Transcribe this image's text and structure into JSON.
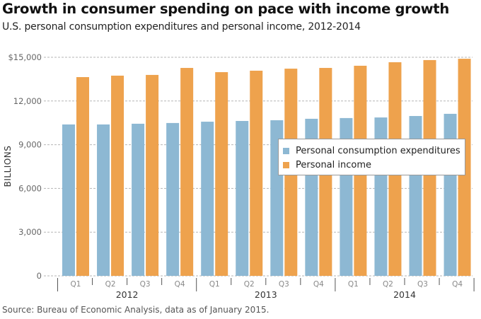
{
  "chart_data": {
    "type": "bar",
    "title": "Growth in consumer spending on pace with income growth",
    "subtitle": "U.S. personal consumption expenditures and personal income, 2012-2014",
    "xlabel": "",
    "ylabel": "BILLIONS",
    "ylim": [
      0,
      15000
    ],
    "yticks": [
      {
        "value": 0,
        "label": "0"
      },
      {
        "value": 3000,
        "label": "3,000"
      },
      {
        "value": 6000,
        "label": "6,000"
      },
      {
        "value": 9000,
        "label": "9,000"
      },
      {
        "value": 12000,
        "label": "12,000"
      },
      {
        "value": 15000,
        "label": "$15,000"
      }
    ],
    "grid": true,
    "categories": [
      "Q1",
      "Q2",
      "Q3",
      "Q4",
      "Q1",
      "Q2",
      "Q3",
      "Q4",
      "Q1",
      "Q2",
      "Q3",
      "Q4"
    ],
    "category_groups": [
      {
        "label": "2012",
        "count": 4
      },
      {
        "label": "2013",
        "count": 4
      },
      {
        "label": "2014",
        "count": 4
      }
    ],
    "series": [
      {
        "name": "Personal consumption expenditures",
        "color": "#8db8d3",
        "values": [
          10390,
          10390,
          10440,
          10490,
          10580,
          10630,
          10680,
          10780,
          10830,
          10870,
          10970,
          11120
        ]
      },
      {
        "name": "Personal income",
        "color": "#eea24d",
        "values": [
          13640,
          13740,
          13790,
          14270,
          13980,
          14080,
          14220,
          14270,
          14420,
          14660,
          14810,
          14900
        ]
      }
    ],
    "legend_position": "center-right",
    "source": "Source: Bureau of Economic Analysis, data as of January 2015."
  }
}
